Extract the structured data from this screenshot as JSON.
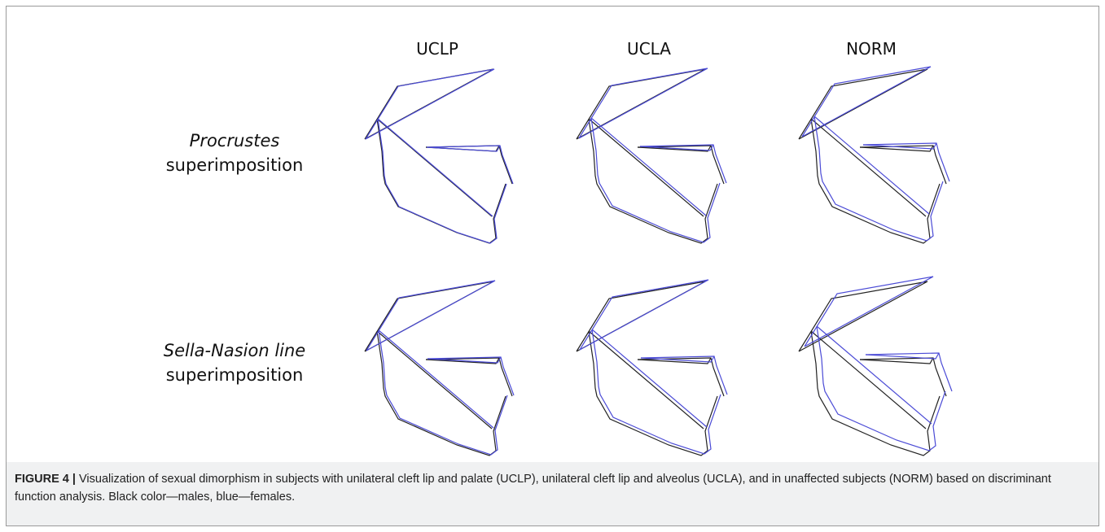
{
  "columns": [
    "UCLP",
    "UCLA",
    "NORM"
  ],
  "rows": [
    {
      "italic": "Procrustes",
      "text": "superimposition"
    },
    {
      "italic": "Sella-Nasion line",
      "text": "superimposition"
    }
  ],
  "caption": {
    "label": "FIGURE 4 |",
    "text": "Visualization of sexual dimorphism in subjects with unilateral cleft lip and palate (UCLP), unilateral cleft lip and alveolus (UCLA), and in unaffected subjects (NORM) based on discriminant function analysis. Black color—males, blue—females."
  }
}
